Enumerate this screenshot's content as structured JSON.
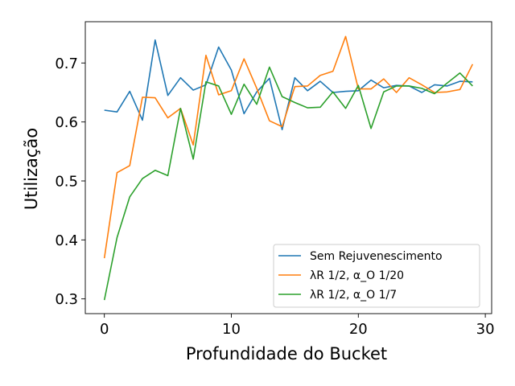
{
  "chart_data": {
    "type": "line",
    "title": "",
    "xlabel": "Profundidade do Bucket",
    "ylabel": "Utilização",
    "xlim": [
      -1.5,
      30.5
    ],
    "ylim": [
      0.275,
      0.77
    ],
    "xticks": [
      0,
      10,
      20,
      30
    ],
    "yticks": [
      0.3,
      0.4,
      0.5,
      0.6,
      0.7
    ],
    "xtick_labels": [
      "0",
      "10",
      "20",
      "30"
    ],
    "ytick_labels": [
      "0.3",
      "0.4",
      "0.5",
      "0.6",
      "0.7"
    ],
    "grid": false,
    "legend_position": "lower-right",
    "x": [
      0,
      1,
      2,
      3,
      4,
      5,
      6,
      7,
      8,
      9,
      10,
      11,
      12,
      13,
      14,
      15,
      16,
      17,
      18,
      19,
      20,
      21,
      22,
      23,
      24,
      25,
      26,
      27,
      28,
      29
    ],
    "series": [
      {
        "name": "Sem Rejuvenescimento",
        "color": "#1f77b4",
        "values": [
          0.62,
          0.617,
          0.652,
          0.603,
          0.739,
          0.645,
          0.675,
          0.654,
          0.663,
          0.727,
          0.688,
          0.614,
          0.651,
          0.674,
          0.587,
          0.675,
          0.653,
          0.669,
          0.65,
          0.652,
          0.653,
          0.671,
          0.658,
          0.662,
          0.661,
          0.65,
          0.663,
          0.661,
          0.669,
          0.668
        ]
      },
      {
        "name": "λR 1/2, α_O 1/20",
        "color": "#ff7f0e",
        "values": [
          0.369,
          0.514,
          0.526,
          0.642,
          0.641,
          0.607,
          0.623,
          0.561,
          0.713,
          0.646,
          0.653,
          0.707,
          0.657,
          0.602,
          0.592,
          0.66,
          0.661,
          0.679,
          0.686,
          0.745,
          0.656,
          0.656,
          0.673,
          0.65,
          0.675,
          0.663,
          0.65,
          0.651,
          0.655,
          0.698
        ]
      },
      {
        "name": "λR 1/2, α_O 1/7",
        "color": "#2ca02c",
        "values": [
          0.298,
          0.404,
          0.473,
          0.504,
          0.518,
          0.509,
          0.623,
          0.537,
          0.668,
          0.661,
          0.613,
          0.664,
          0.63,
          0.693,
          0.643,
          0.633,
          0.624,
          0.625,
          0.651,
          0.623,
          0.662,
          0.589,
          0.651,
          0.661,
          0.661,
          0.657,
          0.648,
          0.666,
          0.683,
          0.661
        ]
      }
    ]
  }
}
